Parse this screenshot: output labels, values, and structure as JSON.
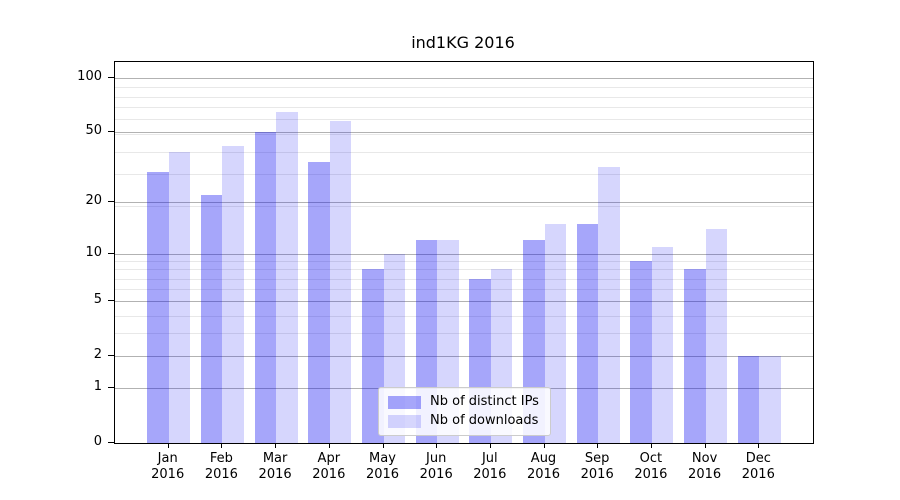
{
  "chart_data": {
    "type": "bar",
    "title": "ind1KG 2016",
    "categories": [
      {
        "month": "Jan",
        "year": "2016"
      },
      {
        "month": "Feb",
        "year": "2016"
      },
      {
        "month": "Mar",
        "year": "2016"
      },
      {
        "month": "Apr",
        "year": "2016"
      },
      {
        "month": "May",
        "year": "2016"
      },
      {
        "month": "Jun",
        "year": "2016"
      },
      {
        "month": "Jul",
        "year": "2016"
      },
      {
        "month": "Aug",
        "year": "2016"
      },
      {
        "month": "Sep",
        "year": "2016"
      },
      {
        "month": "Oct",
        "year": "2016"
      },
      {
        "month": "Nov",
        "year": "2016"
      },
      {
        "month": "Dec",
        "year": "2016"
      }
    ],
    "series": [
      {
        "name": "Nb of distinct IPs",
        "color": "rgba(0,0,240,0.35)",
        "values": [
          30,
          22,
          50,
          34,
          8,
          12,
          7,
          12,
          15,
          9,
          8,
          2
        ]
      },
      {
        "name": "Nb of downloads",
        "color": "rgba(0,0,240,0.16)",
        "values": [
          39,
          42,
          65,
          58,
          10,
          12,
          8,
          15,
          32,
          11,
          14,
          2
        ]
      }
    ],
    "yscale": "log1p",
    "ylim": [
      0,
      123.1
    ],
    "yticks": [
      0,
      1,
      2,
      5,
      10,
      20,
      50,
      100
    ],
    "gridlines_minor_log1p": [
      4,
      5,
      7,
      8,
      9,
      10,
      20,
      30,
      40,
      50,
      60,
      70,
      80,
      90
    ],
    "grid": true,
    "legend_position": "lower-center",
    "colors": {
      "grid_major": "#b2b2b2",
      "grid_minor": "#e8e8e8",
      "spine": "#000000",
      "legend_border": "#cccccc",
      "text": "#000000"
    }
  }
}
